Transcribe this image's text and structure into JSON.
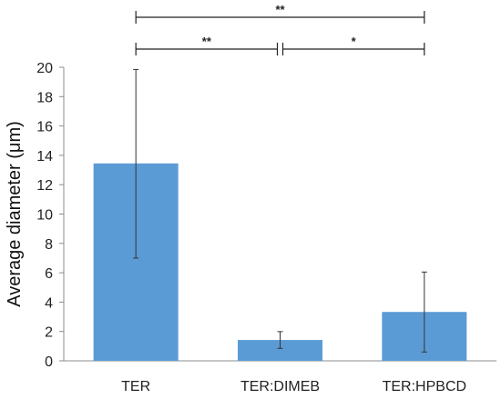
{
  "chart_data": {
    "type": "bar",
    "categories": [
      "TER",
      "TER:DIMEB",
      "TER:HPBCD"
    ],
    "values": [
      13.45,
      1.42,
      3.33
    ],
    "error_upper": [
      19.85,
      1.99,
      6.05
    ],
    "error_lower": [
      7.0,
      0.85,
      0.6
    ],
    "ylabel": "Average diameter (μm)",
    "xlabel": "",
    "ylim": [
      0,
      20
    ],
    "yticks": [
      0,
      2,
      4,
      6,
      8,
      10,
      12,
      14,
      16,
      18,
      20
    ],
    "bar_color": "#5B9BD5",
    "grid": false,
    "legend": "none",
    "significance": [
      {
        "from": "TER",
        "to": "TER:HPBCD",
        "label": "**"
      },
      {
        "from": "TER",
        "to": "TER:DIMEB",
        "label": "**"
      },
      {
        "from": "TER:DIMEB",
        "to": "TER:HPBCD",
        "label": "*"
      }
    ]
  }
}
